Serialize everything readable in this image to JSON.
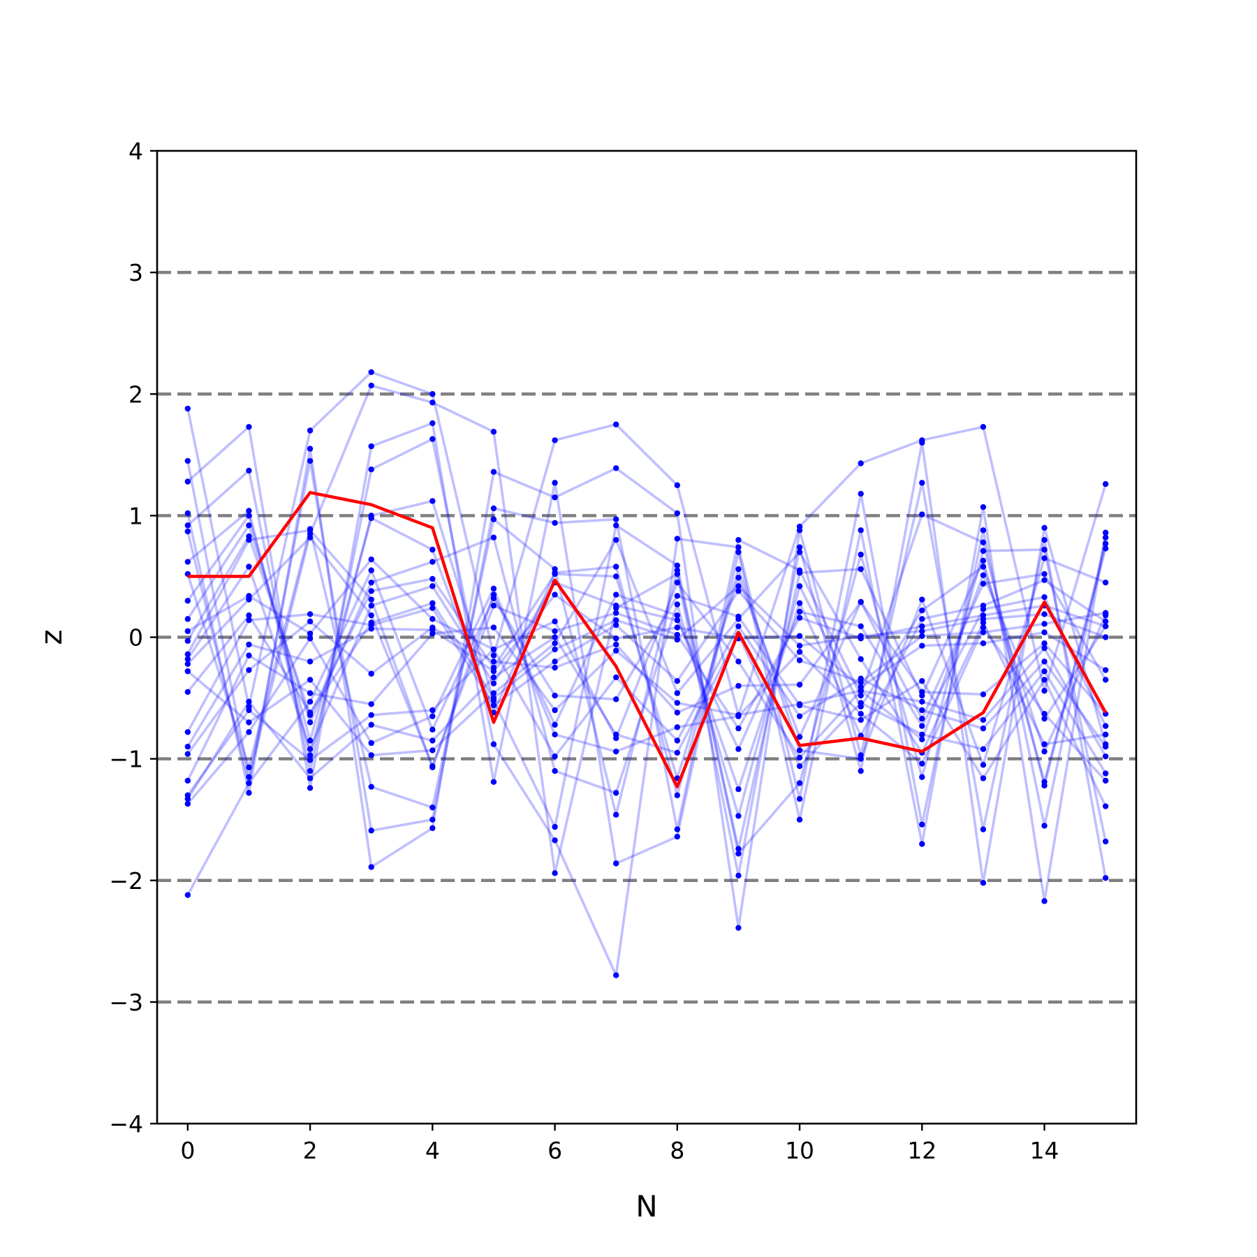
{
  "chart_data": {
    "type": "line",
    "title": "",
    "xlabel": "N",
    "ylabel": "z",
    "xlim": [
      -0.5,
      15.5
    ],
    "ylim": [
      -4,
      4
    ],
    "xticks": [
      0,
      2,
      4,
      6,
      8,
      10,
      12,
      14
    ],
    "yticks": [
      -4,
      -3,
      -2,
      -1,
      0,
      1,
      2,
      3,
      4
    ],
    "xtick_labels": [
      "0",
      "2",
      "4",
      "6",
      "8",
      "10",
      "12",
      "14"
    ],
    "ytick_labels": [
      "−4",
      "−3",
      "−2",
      "−1",
      "0",
      "1",
      "2",
      "3",
      "4"
    ],
    "reference_lines": [
      -3,
      -2,
      -1,
      0,
      1,
      2,
      3
    ],
    "reference_line_color": "#808080",
    "x": [
      0,
      1,
      2,
      3,
      4,
      5,
      6,
      7,
      8,
      9,
      10,
      11,
      12,
      13,
      14,
      15
    ],
    "highlight_series": {
      "color": "#ff0000",
      "values": [
        0.5,
        0.5,
        1.19,
        1.09,
        0.9,
        -0.7,
        0.47,
        -0.24,
        -1.23,
        0.04,
        -0.89,
        -0.83,
        -0.94,
        -0.62,
        0.29,
        -0.62
      ]
    },
    "background_series": {
      "color": "#0000ff",
      "series": [
        {
          "values": [
            1.88,
            -0.57,
            1.7,
            2.18,
            2.0,
            -0.15,
            1.62,
            1.75,
            1.25,
            -0.64,
            0.91,
            1.43,
            1.62,
            1.73,
            -0.44,
            1.26
          ]
        },
        {
          "values": [
            1.45,
            -1.15,
            0.85,
            2.07,
            1.93,
            1.69,
            -1.94,
            0.24,
            0.52,
            -1.96,
            0.74,
            -1.1,
            1.6,
            -2.02,
            0.9,
            -0.88
          ]
        },
        {
          "values": [
            1.28,
            1.73,
            -1.24,
            1.57,
            1.76,
            -1.19,
            1.27,
            -1.86,
            -1.64,
            0.7,
            -1.5,
            0.88,
            -1.7,
            1.07,
            -2.17,
            0.86
          ]
        },
        {
          "values": [
            1.02,
            -1.28,
            1.55,
            -1.89,
            -1.57,
            1.36,
            1.15,
            1.39,
            1.02,
            -2.39,
            0.88,
            -0.97,
            1.27,
            -1.58,
            0.8,
            -1.98
          ]
        },
        {
          "values": [
            0.92,
            1.37,
            -1.1,
            1.38,
            1.63,
            -0.88,
            -1.67,
            -2.78,
            0.81,
            0.74,
            -1.33,
            1.18,
            -1.54,
            0.88,
            -1.55,
            0.82
          ]
        },
        {
          "values": [
            0.87,
            -1.2,
            1.45,
            -1.59,
            -1.5,
            1.06,
            0.94,
            0.97,
            -1.58,
            0.8,
            0.55,
            -0.48,
            1.01,
            0.78,
            -1.22,
            0.77
          ]
        },
        {
          "values": [
            0.62,
            1.04,
            -0.97,
            1.0,
            1.12,
            -0.52,
            -1.56,
            0.92,
            0.59,
            -1.78,
            -1.2,
            0.68,
            -1.15,
            0.71,
            0.72,
            -1.68
          ]
        },
        {
          "values": [
            0.52,
            -1.07,
            0.89,
            -1.23,
            -1.4,
            0.97,
            0.56,
            -1.46,
            0.55,
            -1.74,
            0.53,
            0.56,
            -0.48,
            0.63,
            -1.19,
            0.73
          ]
        },
        {
          "values": [
            0.3,
            1.0,
            -0.85,
            0.98,
            0.72,
            -0.62,
            0.53,
            0.58,
            -1.3,
            0.56,
            -0.93,
            -1.0,
            0.31,
            -1.05,
            0.65,
            0.45
          ]
        },
        {
          "values": [
            0.15,
            0.92,
            -0.7,
            0.45,
            0.62,
            0.82,
            -1.1,
            -1.28,
            0.27,
            -1.47,
            0.42,
            -0.57,
            0.22,
            0.58,
            -0.94,
            0.18
          ]
        },
        {
          "values": [
            -0.03,
            0.83,
            -0.64,
            0.38,
            0.48,
            -0.25,
            0.52,
            0.5,
            -1.16,
            0.49,
            -0.82,
            0.29,
            -0.67,
            0.44,
            0.52,
            -0.35
          ]
        },
        {
          "values": [
            -0.14,
            0.8,
            0.88,
            0.31,
            -1.07,
            0.35,
            -0.72,
            0.35,
            0.18,
            -1.25,
            0.28,
            -0.81,
            0.15,
            0.26,
            0.47,
            0.13
          ]
        },
        {
          "values": [
            -0.18,
            0.58,
            -0.92,
            0.26,
            0.42,
            -0.38,
            0.45,
            0.26,
            0.14,
            -0.92,
            0.21,
            0.09,
            -0.73,
            0.23,
            0.33,
            -0.73
          ]
        },
        {
          "values": [
            -0.22,
            0.31,
            0.82,
            0.18,
            -1.06,
            0.26,
            0.05,
            0.2,
            0.02,
            -0.75,
            0.16,
            -0.01,
            0.09,
            0.18,
            0.26,
            0.09
          ]
        },
        {
          "values": [
            -0.45,
            0.18,
            -0.62,
            0.12,
            0.28,
            -0.5,
            -0.1,
            0.14,
            -0.02,
            0.42,
            -0.07,
            0.01,
            0.05,
            0.15,
            0.19,
            0.0
          ]
        },
        {
          "values": [
            -0.78,
            0.14,
            0.19,
            0.1,
            0.24,
            -0.56,
            -0.2,
            0.1,
            -0.36,
            0.38,
            -0.19,
            -0.37,
            0.01,
            0.04,
            0.11,
            0.2
          ]
        },
        {
          "values": [
            -0.9,
            -0.06,
            -0.2,
            0.07,
            0.06,
            -0.28,
            0.35,
            -0.01,
            0.08,
            -0.01,
            0.01,
            -0.41,
            -0.07,
            -0.05,
            0.04,
            -0.27
          ]
        },
        {
          "values": [
            -0.96,
            -0.27,
            0.13,
            -0.3,
            0.08,
            -0.2,
            -0.25,
            -0.06,
            -0.62,
            -0.4,
            -0.39,
            0.29,
            -0.45,
            -0.47,
            -0.05,
            -0.63
          ]
        },
        {
          "values": [
            -1.18,
            -0.15,
            -0.46,
            -0.55,
            0.03,
            0.08,
            -0.6,
            -0.11,
            -0.54,
            -0.64,
            -0.55,
            -0.44,
            -0.53,
            -0.68,
            -0.09,
            -0.98
          ]
        },
        {
          "values": [
            -1.3,
            -0.6,
            -1.01,
            -0.64,
            -0.6,
            -0.1,
            -0.98,
            -0.33,
            -0.85,
            0.09,
            -0.65,
            -0.34,
            -0.6,
            -0.75,
            -0.2,
            -0.9
          ]
        },
        {
          "values": [
            -1.33,
            -0.53,
            -1.16,
            -0.72,
            -0.85,
            -0.33,
            0.0,
            -0.8,
            -0.95,
            0.02,
            -1.06,
            -0.54,
            -0.8,
            -0.92,
            -0.28,
            -1.12
          ]
        },
        {
          "values": [
            -1.37,
            -0.78,
            -0.01,
            -0.87,
            -0.65,
            0.4,
            -0.8,
            -0.94,
            -0.74,
            -0.65,
            -0.12,
            -0.63,
            -1.04,
            0.08,
            -0.63,
            -1.18
          ]
        },
        {
          "values": [
            -2.12,
            -1.2,
            -0.53,
            0.55,
            -0.76,
            0.32,
            -0.48,
            -0.51,
            0.34,
            0.17,
            -0.56,
            -0.68,
            -0.36,
            -1.16,
            -0.35,
            -1.39
          ]
        },
        {
          "values": [
            0.05,
            0.34,
            0.03,
            0.64,
            0.15,
            -0.1,
            0.13,
            -0.83,
            0.45,
            -0.2,
            -0.99,
            -0.44,
            -0.84,
            0.51,
            -0.67,
            0.09
          ]
        },
        {
          "values": [
            -0.28,
            -0.7,
            -0.35,
            -0.97,
            -0.93,
            -0.46,
            -0.05,
            0.8,
            -0.46,
            0.15,
            0.7,
            -0.18,
            -0.95,
            0.12,
            -0.88,
            -0.8
          ]
        }
      ]
    }
  }
}
